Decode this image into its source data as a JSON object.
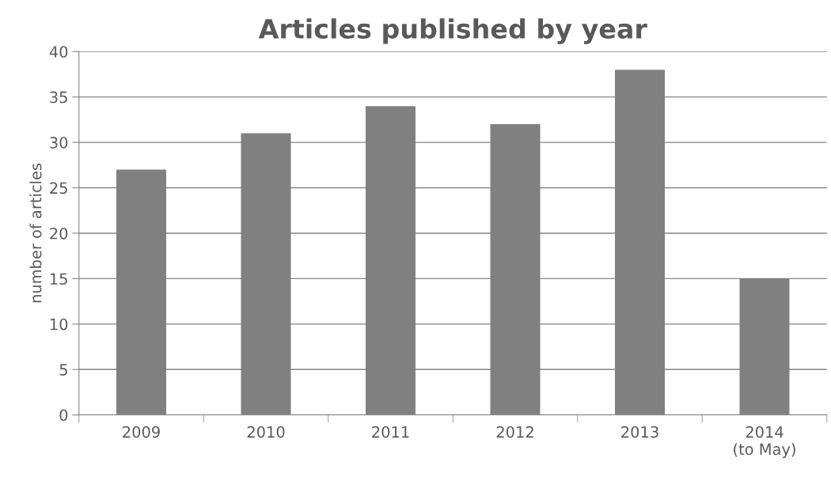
{
  "chart_data": {
    "type": "bar",
    "title": "Articles published by year",
    "ylabel": "number of articles",
    "categories": [
      "2009",
      "2010",
      "2011",
      "2012",
      "2013",
      "2014\n(to May)"
    ],
    "values": [
      27,
      31,
      34,
      32,
      38,
      15
    ],
    "color": "#808080",
    "ylim": [
      0,
      40
    ],
    "yticks": [
      0,
      5,
      10,
      15,
      20,
      25,
      30,
      35,
      40
    ],
    "grid": "y",
    "legend": false
  }
}
